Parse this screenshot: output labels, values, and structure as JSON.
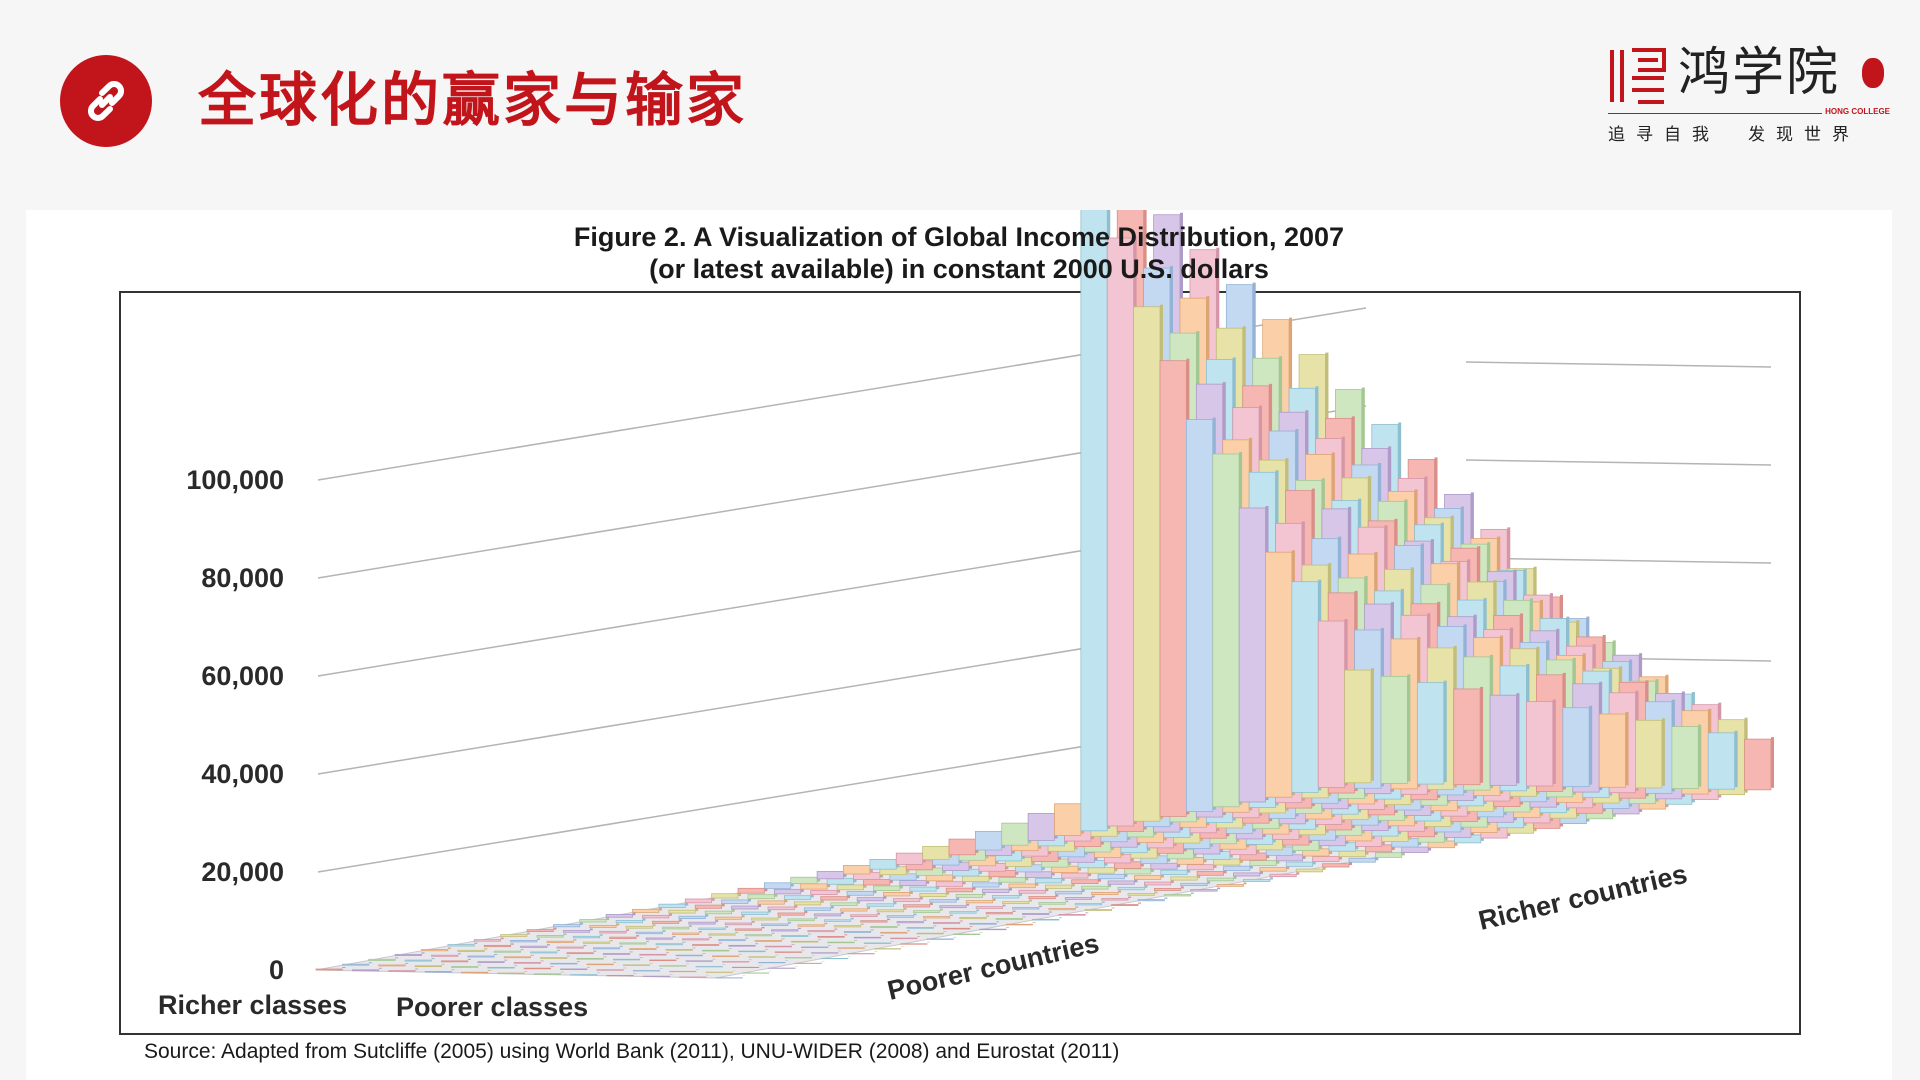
{
  "header": {
    "title": "全球化的赢家与输家",
    "icon": "link-icon",
    "accent_color": "#c2151b"
  },
  "logo": {
    "name": "鸿学院",
    "english": "HONG COLLEGE",
    "tagline": "追寻自我　发现世界"
  },
  "chart_data": {
    "type": "bar",
    "subtype": "3d-bar-surface",
    "title": "Figure 2. A Visualization of Global Income Distribution, 2007",
    "subtitle": "(or latest available) in constant 2000 U.S. dollars",
    "xlabel_start": "Poorer countries",
    "xlabel_end": "Richer countries",
    "zlabel_start": "Richer classes",
    "zlabel_end": "Poorer classes",
    "ylabel": "",
    "y_ticks": [
      "0",
      "20,000",
      "40,000",
      "60,000",
      "80,000",
      "100,000"
    ],
    "ylim": [
      0,
      140000
    ],
    "grid": true,
    "source": "Source: Adapted from Sutcliffe (2005) using World Bank (2011), UNU-WIDER (2008) and Eurostat (2011)",
    "x_groups": 40,
    "series": [
      {
        "name": "",
        "values": [
          200,
          210,
          230,
          250,
          270,
          300,
          330,
          360,
          400,
          450,
          500,
          560,
          630,
          700,
          780,
          880,
          1000,
          1150,
          1300,
          1500,
          1750,
          2000,
          2300,
          2700,
          3200,
          3800,
          4500,
          5500,
          6500,
          8000,
          10000,
          12500,
          16000,
          20000,
          25000,
          30000,
          36000,
          41000,
          47000,
          55000
        ]
      },
      {
        "name": "",
        "values": [
          200,
          210,
          230,
          250,
          270,
          300,
          330,
          360,
          400,
          450,
          500,
          560,
          630,
          700,
          780,
          880,
          1000,
          1150,
          1300,
          1500,
          1750,
          2000,
          2300,
          2700,
          3200,
          3800,
          4500,
          5500,
          6500,
          8000,
          10000,
          12500,
          16000,
          20000,
          25000,
          30000,
          36000,
          41000,
          47000,
          55000
        ]
      }
    ],
    "peak_values": [
      140000,
      120000,
      105000,
      93000,
      80000,
      72000,
      60000,
      50000,
      43000,
      34000,
      23000
    ]
  }
}
